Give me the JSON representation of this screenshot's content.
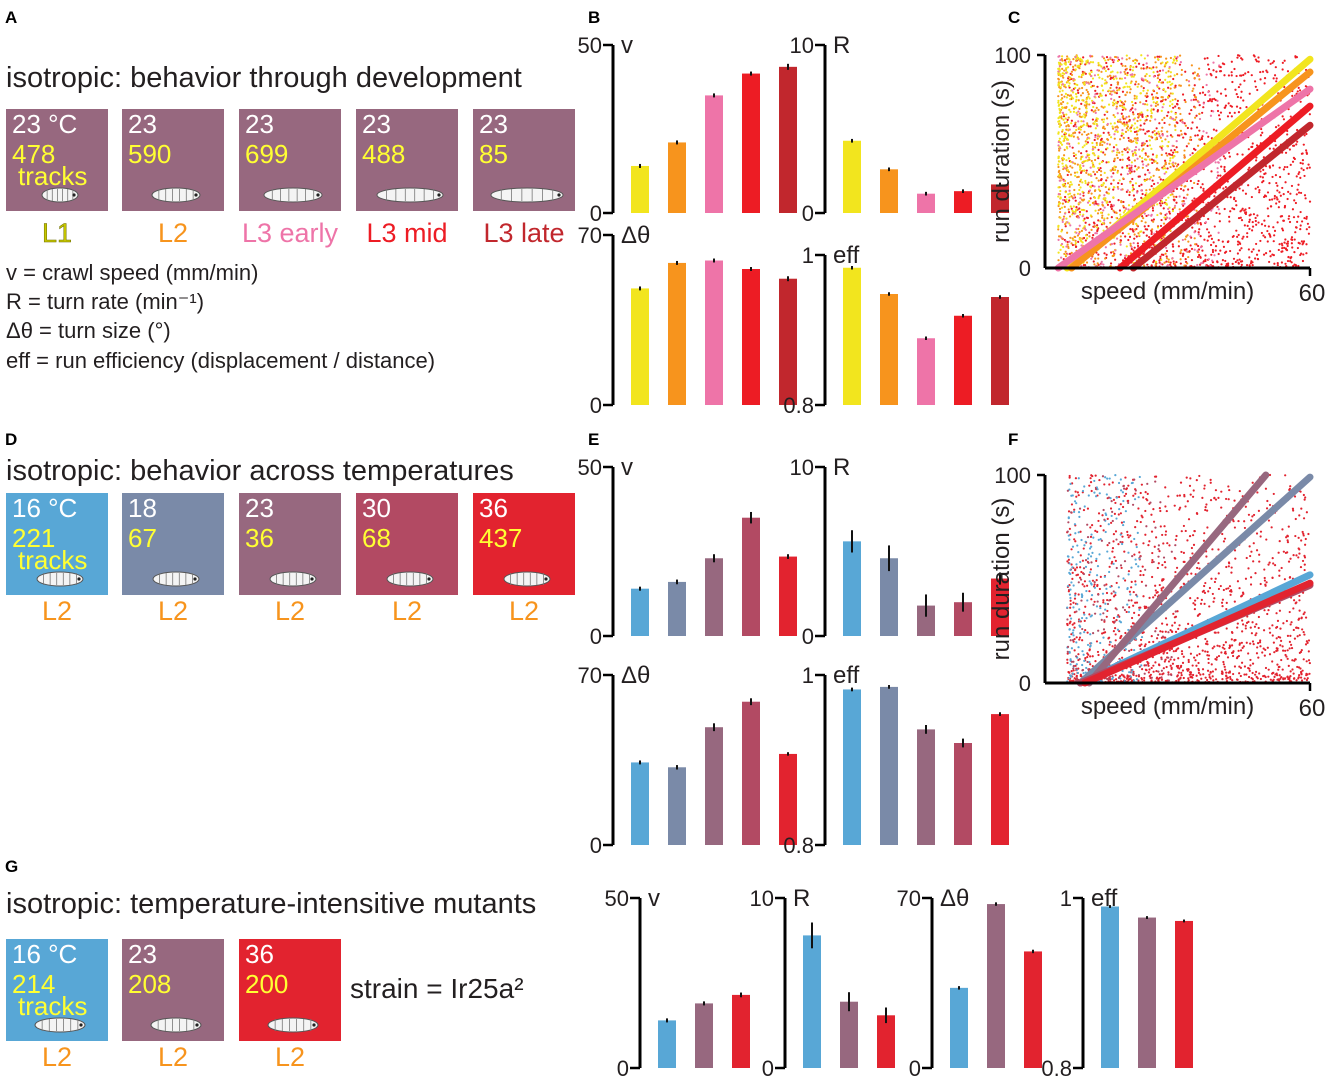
{
  "panel_labels": {
    "A": "A",
    "B": "B",
    "C": "C",
    "D": "D",
    "E": "E",
    "F": "F",
    "G": "G"
  },
  "titles": {
    "A": "isotropic: behavior through development",
    "D": "isotropic: behavior across temperatures",
    "G": "isotropic: temperature-intensitive mutants"
  },
  "colors": {
    "box_purple": "#97687f",
    "box_blue": "#58a7d6",
    "box_slate": "#7a8aa8",
    "box_rose": "#b24a63",
    "box_red": "#e2232f",
    "stage_yellow": "#c8c800",
    "stage_orange": "#f7941d",
    "stage_pink": "#ee74a8",
    "stage_red": "#ed1c24",
    "stage_darkred": "#c1272d"
  },
  "groupA": [
    {
      "t1": "23 °C",
      "t2": "478",
      "t3": "tracks",
      "stage": "L1"
    },
    {
      "t1": "23",
      "t2": "590",
      "t3": "",
      "stage": "L2"
    },
    {
      "t1": "23",
      "t2": "699",
      "t3": "",
      "stage": "L3 early"
    },
    {
      "t1": "23",
      "t2": "488",
      "t3": "",
      "stage": "L3 mid"
    },
    {
      "t1": "23",
      "t2": "85",
      "t3": "",
      "stage": "L3 late"
    }
  ],
  "groupD": [
    {
      "t1": "16 °C",
      "t2": "221",
      "t3": "tracks",
      "stage": "L2"
    },
    {
      "t1": "18",
      "t2": "67",
      "t3": "",
      "stage": "L2"
    },
    {
      "t1": "23",
      "t2": "36",
      "t3": "",
      "stage": "L2"
    },
    {
      "t1": "30",
      "t2": "68",
      "t3": "",
      "stage": "L2"
    },
    {
      "t1": "36",
      "t2": "437",
      "t3": "",
      "stage": "L2"
    }
  ],
  "groupG": [
    {
      "t1": "16 °C",
      "t2": "214",
      "t3": "tracks",
      "stage": "L2"
    },
    {
      "t1": "23",
      "t2": "208",
      "t3": "",
      "stage": "L2"
    },
    {
      "t1": "36",
      "t2": "200",
      "t3": "",
      "stage": "L2"
    }
  ],
  "strain_label": "strain = Ir25a²",
  "legend": [
    "v = crawl speed (mm/min)",
    "R = turn rate (min⁻¹)",
    "Δθ = turn size (°)",
    "eff = run efficiency (displacement / distance)"
  ],
  "chart_data": [
    {
      "panel": "B",
      "type": "bar",
      "title": "v",
      "ylim": [
        0,
        50
      ],
      "ytick_labels": [
        "0",
        "50"
      ],
      "categories": [
        "L1",
        "L2",
        "L3 early",
        "L3 mid",
        "L3 late"
      ],
      "values": [
        14,
        21,
        35,
        41.5,
        43.5
      ],
      "errors": [
        0.3,
        0.3,
        0.3,
        0.3,
        0.6
      ],
      "colors": [
        "#f2e51e",
        "#f7941d",
        "#ee74a8",
        "#ed1c24",
        "#c1272d"
      ]
    },
    {
      "panel": "B",
      "type": "bar",
      "title": "R",
      "ylim": [
        0,
        10
      ],
      "ytick_labels": [
        "0",
        "10"
      ],
      "categories": [
        "L1",
        "L2",
        "L3 early",
        "L3 mid",
        "L3 late"
      ],
      "values": [
        4.3,
        2.6,
        1.15,
        1.3,
        1.7
      ],
      "errors": [
        0.05,
        0.05,
        0.05,
        0.05,
        0.05
      ],
      "colors": [
        "#f2e51e",
        "#f7941d",
        "#ee74a8",
        "#ed1c24",
        "#c1272d"
      ]
    },
    {
      "panel": "B",
      "type": "bar",
      "title": "Δθ",
      "ylim": [
        0,
        70
      ],
      "ytick_labels": [
        "0",
        "70"
      ],
      "categories": [
        "L1",
        "L2",
        "L3 early",
        "L3 mid",
        "L3 late"
      ],
      "values": [
        48,
        58.5,
        59.5,
        56,
        52
      ],
      "errors": [
        0.4,
        0.4,
        0.4,
        0.4,
        0.6
      ],
      "colors": [
        "#f2e51e",
        "#f7941d",
        "#ee74a8",
        "#ed1c24",
        "#c1272d"
      ]
    },
    {
      "panel": "B",
      "type": "bar",
      "title": "eff",
      "ylim": [
        0.8,
        1
      ],
      "ytick_labels": [
        "0.8",
        "1"
      ],
      "categories": [
        "L1",
        "L2",
        "L3 early",
        "L3 mid",
        "L3 late"
      ],
      "values": [
        0.983,
        0.948,
        0.889,
        0.919,
        0.944
      ],
      "errors": [
        0.001,
        0.001,
        0.001,
        0.001,
        0.001
      ],
      "colors": [
        "#f2e51e",
        "#f7941d",
        "#ee74a8",
        "#ed1c24",
        "#c1272d"
      ]
    },
    {
      "panel": "C",
      "type": "scatter",
      "xlabel": "speed (mm/min)",
      "ylabel": "run duration (s)",
      "xlim": [
        0,
        60
      ],
      "ylim": [
        0,
        100
      ],
      "xtick_labels": [
        "60"
      ],
      "ytick_labels": [
        "0",
        "100"
      ],
      "series": [
        {
          "name": "L1",
          "color": "#f2e51e",
          "fit": [
            [
              5,
              0
            ],
            [
              60,
              98
            ]
          ]
        },
        {
          "name": "L2",
          "color": "#f7941d",
          "fit": [
            [
              6,
              0
            ],
            [
              60,
              92
            ]
          ]
        },
        {
          "name": "L3 early",
          "color": "#ee74a8",
          "fit": [
            [
              3,
              0
            ],
            [
              60,
              84
            ]
          ]
        },
        {
          "name": "L3 mid",
          "color": "#ed1c24",
          "fit": [
            [
              17,
              0
            ],
            [
              60,
              76
            ]
          ]
        },
        {
          "name": "L3 late",
          "color": "#c1272d",
          "fit": [
            [
              20,
              0
            ],
            [
              60,
              67
            ]
          ]
        }
      ]
    },
    {
      "panel": "E",
      "type": "bar",
      "title": "v",
      "ylim": [
        0,
        50
      ],
      "ytick_labels": [
        "0",
        "50"
      ],
      "categories": [
        "16",
        "18",
        "23",
        "30",
        "36"
      ],
      "values": [
        14,
        16,
        23,
        35,
        23.5
      ],
      "errors": [
        0.3,
        0.4,
        0.9,
        1.4,
        0.4
      ],
      "colors": [
        "#58a7d6",
        "#7a8aa8",
        "#97687f",
        "#b24a63",
        "#e2232f"
      ]
    },
    {
      "panel": "E",
      "type": "bar",
      "title": "R",
      "ylim": [
        0,
        10
      ],
      "ytick_labels": [
        "0",
        "10"
      ],
      "categories": [
        "16",
        "18",
        "23",
        "30",
        "36"
      ],
      "values": [
        5.6,
        4.6,
        1.8,
        2.0,
        3.4
      ],
      "errors": [
        0.6,
        0.7,
        0.6,
        0.5,
        0.3
      ],
      "colors": [
        "#58a7d6",
        "#7a8aa8",
        "#97687f",
        "#b24a63",
        "#e2232f"
      ]
    },
    {
      "panel": "E",
      "type": "bar",
      "title": "Δθ",
      "ylim": [
        0,
        70
      ],
      "ytick_labels": [
        "0",
        "70"
      ],
      "categories": [
        "16",
        "18",
        "23",
        "30",
        "36"
      ],
      "values": [
        34,
        32,
        48.5,
        59,
        37.5
      ],
      "errors": [
        0.4,
        0.5,
        1.2,
        1.0,
        0.3
      ],
      "colors": [
        "#58a7d6",
        "#7a8aa8",
        "#97687f",
        "#b24a63",
        "#e2232f"
      ]
    },
    {
      "panel": "E",
      "type": "bar",
      "title": "eff",
      "ylim": [
        0.8,
        1
      ],
      "ytick_labels": [
        "0.8",
        "1"
      ],
      "categories": [
        "16",
        "18",
        "23",
        "30",
        "36"
      ],
      "values": [
        0.983,
        0.986,
        0.936,
        0.92,
        0.954
      ],
      "errors": [
        0.001,
        0.001,
        0.004,
        0.004,
        0.001
      ],
      "colors": [
        "#58a7d6",
        "#7a8aa8",
        "#97687f",
        "#b24a63",
        "#e2232f"
      ]
    },
    {
      "panel": "F",
      "type": "scatter",
      "xlabel": "speed (mm/min)",
      "ylabel": "run duration (s)",
      "xlim": [
        0,
        60
      ],
      "ylim": [
        0,
        100
      ],
      "xtick_labels": [
        "60"
      ],
      "ytick_labels": [
        "0",
        "100"
      ],
      "series": [
        {
          "name": "16",
          "color": "#58a7d6",
          "fit": [
            [
              8,
              0
            ],
            [
              60,
              52
            ]
          ]
        },
        {
          "name": "18",
          "color": "#7a8aa8",
          "fit": [
            [
              8,
              0
            ],
            [
              60,
              99
            ]
          ]
        },
        {
          "name": "23",
          "color": "#97687f",
          "fit": [
            [
              10,
              0
            ],
            [
              50,
              100
            ]
          ]
        },
        {
          "name": "30",
          "color": "#b24a63",
          "fit": [
            [
              8,
              0
            ],
            [
              60,
              47
            ]
          ]
        },
        {
          "name": "36",
          "color": "#e2232f",
          "fit": [
            [
              9,
              0
            ],
            [
              60,
              48
            ]
          ]
        }
      ]
    },
    {
      "panel": "G",
      "type": "bar",
      "title": "v",
      "ylim": [
        0,
        50
      ],
      "ytick_labels": [
        "0",
        "50"
      ],
      "categories": [
        "16",
        "23",
        "36"
      ],
      "values": [
        14,
        19,
        21.5
      ],
      "errors": [
        0.3,
        0.3,
        0.4
      ],
      "colors": [
        "#58a7d6",
        "#97687f",
        "#e2232f"
      ]
    },
    {
      "panel": "G",
      "type": "bar",
      "title": "R",
      "ylim": [
        0,
        10
      ],
      "ytick_labels": [
        "0",
        "10"
      ],
      "categories": [
        "16",
        "23",
        "36"
      ],
      "values": [
        7.8,
        3.9,
        3.1
      ],
      "errors": [
        0.7,
        0.5,
        0.4
      ],
      "colors": [
        "#58a7d6",
        "#97687f",
        "#e2232f"
      ]
    },
    {
      "panel": "G",
      "type": "bar",
      "title": "Δθ",
      "ylim": [
        0,
        70
      ],
      "ytick_labels": [
        "0",
        "70"
      ],
      "categories": [
        "16",
        "23",
        "36"
      ],
      "values": [
        33,
        67.5,
        48
      ],
      "errors": [
        0.3,
        0.3,
        0.3
      ],
      "colors": [
        "#58a7d6",
        "#97687f",
        "#e2232f"
      ]
    },
    {
      "panel": "G",
      "type": "bar",
      "title": "eff",
      "ylim": [
        0.8,
        1
      ],
      "ytick_labels": [
        "0.8",
        "1"
      ],
      "categories": [
        "16",
        "23",
        "36"
      ],
      "values": [
        0.99,
        0.977,
        0.973
      ],
      "errors": [
        0.0005,
        0.0005,
        0.0005
      ],
      "colors": [
        "#58a7d6",
        "#97687f",
        "#e2232f"
      ]
    }
  ]
}
